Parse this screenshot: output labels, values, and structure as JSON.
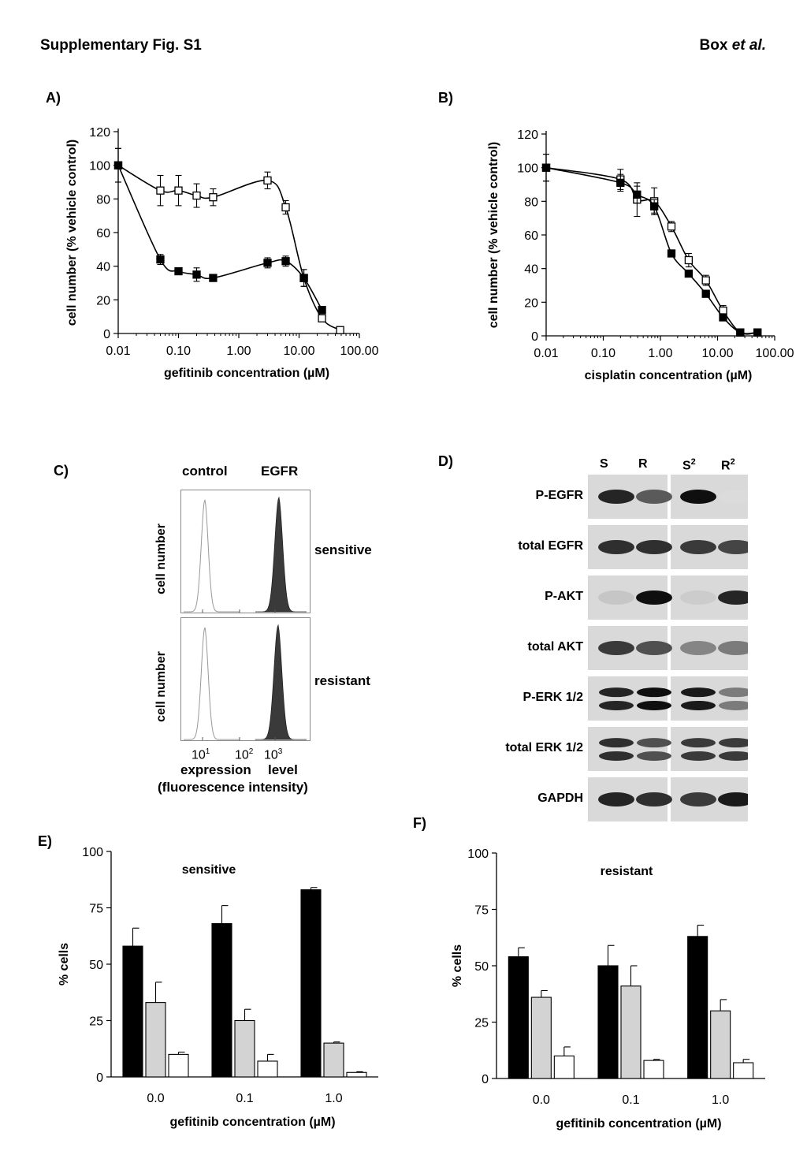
{
  "header": {
    "title": "Supplementary Fig. S1",
    "authors_prefix": "Box ",
    "authors_italic": "et al."
  },
  "panels": {
    "A": "A)",
    "B": "B)",
    "C": "C)",
    "D": "D)",
    "E": "E)",
    "F": "F)"
  },
  "chart_data": [
    {
      "id": "A",
      "type": "line",
      "log_x": true,
      "xlabel": "gefitinib concentration (µM)",
      "ylabel": "cell number (% vehicle control)",
      "ylim": [
        0,
        120
      ],
      "xlim": [
        0.01,
        100
      ],
      "xtick_labels": [
        "0.01",
        "0.10",
        "1.00",
        "10.00",
        "100.00"
      ],
      "ytick_labels": [
        "0",
        "20",
        "40",
        "60",
        "80",
        "100",
        "120"
      ],
      "series": [
        {
          "marker": "open-square",
          "x": [
            0.01,
            0.05,
            0.1,
            0.2,
            0.375,
            3,
            6,
            12,
            24,
            48
          ],
          "y": [
            100,
            85,
            85,
            82,
            81,
            91,
            75,
            33,
            9,
            2
          ],
          "err": [
            10,
            9,
            9,
            7,
            5,
            5,
            4,
            5,
            2,
            1
          ]
        },
        {
          "marker": "filled-square",
          "x": [
            0.01,
            0.05,
            0.1,
            0.2,
            0.375,
            3,
            6,
            12,
            24
          ],
          "y": [
            100,
            44,
            37,
            35,
            33,
            42,
            43,
            33,
            14
          ],
          "err": [
            10,
            3,
            2,
            4,
            2,
            3,
            3,
            5,
            2
          ]
        }
      ]
    },
    {
      "id": "B",
      "type": "line",
      "log_x": true,
      "xlabel": "cisplatin concentration (µM)",
      "ylabel": "cell number (% vehicle control)",
      "ylim": [
        0,
        120
      ],
      "xlim": [
        0.01,
        100
      ],
      "xtick_labels": [
        "0.01",
        "0.10",
        "1.00",
        "10.00",
        "100.00"
      ],
      "ytick_labels": [
        "0",
        "20",
        "40",
        "60",
        "80",
        "100",
        "120"
      ],
      "series": [
        {
          "marker": "open-square",
          "x": [
            0.01,
            0.2,
            0.39,
            0.78,
            1.56,
            3.125,
            6.25,
            12.5,
            25,
            50
          ],
          "y": [
            100,
            93,
            81,
            80,
            65,
            45,
            33,
            15,
            2,
            2
          ],
          "err": [
            8,
            6,
            10,
            8,
            3,
            4,
            3,
            3,
            1,
            1
          ]
        },
        {
          "marker": "filled-square",
          "x": [
            0.01,
            0.2,
            0.39,
            0.78,
            1.56,
            3.125,
            6.25,
            12.5,
            25,
            50
          ],
          "y": [
            100,
            91,
            84,
            77,
            49,
            37,
            25,
            11,
            2,
            2
          ],
          "err": [
            8,
            5,
            5,
            4,
            2,
            2,
            2,
            2,
            1,
            1
          ]
        }
      ]
    },
    {
      "id": "E",
      "type": "bar",
      "title": "sensitive",
      "categories": [
        "0.0",
        "0.1",
        "1.0"
      ],
      "xlabel": "gefitinib concentration (µM)",
      "ylabel": "% cells",
      "ylim": [
        0,
        100
      ],
      "ytick_labels": [
        "0",
        "25",
        "50",
        "75",
        "100"
      ],
      "series": [
        {
          "color": "#000000",
          "values": [
            58,
            68,
            83
          ],
          "err": [
            8,
            8,
            1
          ]
        },
        {
          "color": "#d3d3d3",
          "values": [
            33,
            25,
            15
          ],
          "err": [
            9,
            5,
            0.5
          ]
        },
        {
          "color": "#ffffff",
          "values": [
            10,
            7,
            2
          ],
          "err": [
            1,
            3,
            0.3
          ]
        }
      ]
    },
    {
      "id": "F",
      "type": "bar",
      "title": "resistant",
      "categories": [
        "0.0",
        "0.1",
        "1.0"
      ],
      "xlabel": "gefitinib concentration (µM)",
      "ylabel": "% cells",
      "ylim": [
        0,
        100
      ],
      "ytick_labels": [
        "0",
        "25",
        "50",
        "75",
        "100"
      ],
      "series": [
        {
          "color": "#000000",
          "values": [
            54,
            50,
            63
          ],
          "err": [
            4,
            9,
            5
          ]
        },
        {
          "color": "#d3d3d3",
          "values": [
            36,
            41,
            30
          ],
          "err": [
            3,
            9,
            5
          ]
        },
        {
          "color": "#ffffff",
          "values": [
            10,
            8,
            7
          ],
          "err": [
            4,
            0.5,
            1.5
          ]
        }
      ]
    }
  ],
  "flow": {
    "col_control": "control",
    "col_egfr": "EGFR",
    "row_sensitive": "sensitive",
    "row_resistant": "resistant",
    "ylabel": "cell number",
    "tick1_base": "10",
    "tick1_exp": "1",
    "tick2_base": "10",
    "tick2_exp": "2",
    "tick3_base": "10",
    "tick3_exp": "3",
    "xlabel_a": "expression",
    "xlabel_b": "level",
    "xlabel_line2": "(fluorescence intensity)"
  },
  "blot": {
    "lanes": [
      {
        "base": "S",
        "sup": ""
      },
      {
        "base": "R",
        "sup": ""
      },
      {
        "base": "S",
        "sup": "2"
      },
      {
        "base": "R",
        "sup": "2"
      }
    ],
    "rows": [
      {
        "label": "P-EGFR",
        "intensity": [
          0.9,
          0.65,
          1.0,
          0.05
        ],
        "bands": 1
      },
      {
        "label": "total EGFR",
        "intensity": [
          0.85,
          0.85,
          0.8,
          0.75
        ],
        "bands": 1
      },
      {
        "label": "P-AKT",
        "intensity": [
          0.15,
          1.0,
          0.12,
          0.9
        ],
        "bands": 1
      },
      {
        "label": "total AKT",
        "intensity": [
          0.8,
          0.7,
          0.45,
          0.5
        ],
        "bands": 1
      },
      {
        "label": "P-ERK 1/2",
        "intensity": [
          0.9,
          1.0,
          0.95,
          0.5
        ],
        "bands": 2
      },
      {
        "label": "total ERK 1/2",
        "intensity": [
          0.85,
          0.7,
          0.8,
          0.8
        ],
        "bands": 2
      },
      {
        "label": "GAPDH",
        "intensity": [
          0.9,
          0.85,
          0.8,
          0.95
        ],
        "bands": 1
      }
    ]
  }
}
